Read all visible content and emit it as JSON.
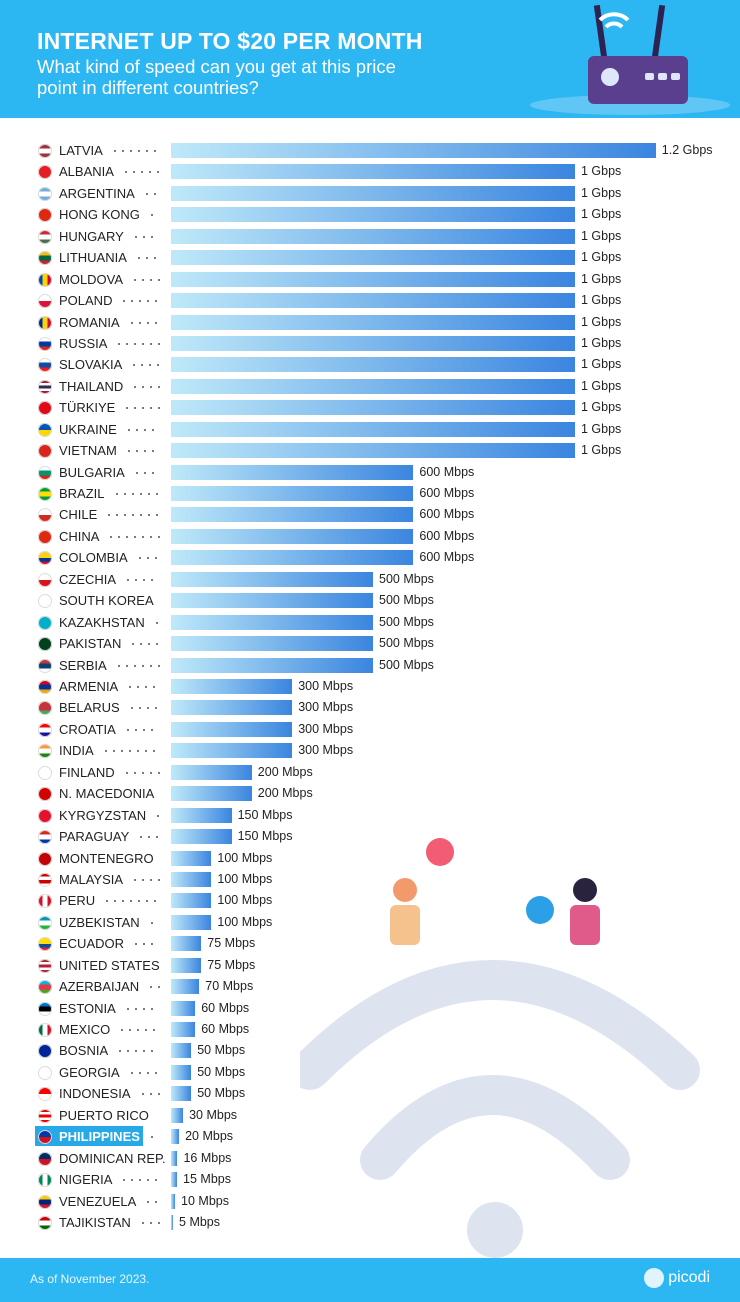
{
  "header": {
    "title": "INTERNET UP TO $20 PER MONTH",
    "subtitle": "What kind of speed can you get at this price point in different countries?"
  },
  "footer": {
    "note": "As of November 2023.",
    "brand": "picodi"
  },
  "chart_data": {
    "type": "bar",
    "orientation": "horizontal",
    "unit": "Mbps",
    "xlim": [
      0,
      1200
    ],
    "grid": false,
    "bar_gradient": [
      "#bfe9f9",
      "#3a85df"
    ],
    "highlight_color": "#28a9e7",
    "categories": [
      "LATVIA",
      "ALBANIA",
      "ARGENTINA",
      "HONG KONG",
      "HUNGARY",
      "LITHUANIA",
      "MOLDOVA",
      "POLAND",
      "ROMANIA",
      "RUSSIA",
      "SLOVAKIA",
      "THAILAND",
      "TÜRKIYE",
      "UKRAINE",
      "VIETNAM",
      "BULGARIA",
      "BRAZIL",
      "CHILE",
      "CHINA",
      "COLOMBIA",
      "CZECHIA",
      "SOUTH KOREA",
      "KAZAKHSTAN",
      "PAKISTAN",
      "SERBIA",
      "ARMENIA",
      "BELARUS",
      "CROATIA",
      "INDIA",
      "FINLAND",
      "N. MACEDONIA",
      "KYRGYZSTAN",
      "PARAGUAY",
      "MONTENEGRO",
      "MALAYSIA",
      "PERU",
      "UZBEKISTAN",
      "ECUADOR",
      "UNITED STATES",
      "AZERBAIJAN",
      "ESTONIA",
      "MEXICO",
      "BOSNIA",
      "GEORGIA",
      "INDONESIA",
      "PUERTO RICO",
      "PHILIPPINES",
      "DOMINICAN REP.",
      "NIGERIA",
      "VENEZUELA",
      "TAJIKISTAN"
    ],
    "values": [
      1200,
      1000,
      1000,
      1000,
      1000,
      1000,
      1000,
      1000,
      1000,
      1000,
      1000,
      1000,
      1000,
      1000,
      1000,
      600,
      600,
      600,
      600,
      600,
      500,
      500,
      500,
      500,
      500,
      300,
      300,
      300,
      300,
      200,
      200,
      150,
      150,
      100,
      100,
      100,
      100,
      75,
      75,
      70,
      60,
      60,
      50,
      50,
      50,
      30,
      20,
      16,
      15,
      10,
      5
    ],
    "labels": [
      "1.2 Gbps",
      "1 Gbps",
      "1 Gbps",
      "1 Gbps",
      "1 Gbps",
      "1 Gbps",
      "1 Gbps",
      "1 Gbps",
      "1 Gbps",
      "1 Gbps",
      "1 Gbps",
      "1 Gbps",
      "1 Gbps",
      "1 Gbps",
      "1 Gbps",
      "600 Mbps",
      "600 Mbps",
      "600 Mbps",
      "600 Mbps",
      "600 Mbps",
      "500 Mbps",
      "500 Mbps",
      "500 Mbps",
      "500 Mbps",
      "500 Mbps",
      "300 Mbps",
      "300 Mbps",
      "300 Mbps",
      "300 Mbps",
      "200 Mbps",
      "200 Mbps",
      "150 Mbps",
      "150 Mbps",
      "100 Mbps",
      "100 Mbps",
      "100 Mbps",
      "100 Mbps",
      "75 Mbps",
      "75 Mbps",
      "70 Mbps",
      "60 Mbps",
      "60 Mbps",
      "50 Mbps",
      "50 Mbps",
      "50 Mbps",
      "30 Mbps",
      "20 Mbps",
      "16 Mbps",
      "15 Mbps",
      "10 Mbps",
      "5 Mbps"
    ],
    "highlighted": "PHILIPPINES",
    "flags": [
      [
        "#9e3039",
        "#ffffff",
        "#9e3039"
      ],
      [
        "#e41e20"
      ],
      [
        "#74acdf",
        "#ffffff",
        "#74acdf"
      ],
      [
        "#de2910"
      ],
      [
        "#ce2939",
        "#ffffff",
        "#477050"
      ],
      [
        "#fdb913",
        "#006a44",
        "#c1272d"
      ],
      [
        "v",
        "#0046ae",
        "#ffd200",
        "#cc092f"
      ],
      [
        "#ffffff",
        "#dc143c"
      ],
      [
        "v",
        "#002b7f",
        "#fcd116",
        "#ce1126"
      ],
      [
        "#ffffff",
        "#0039a6",
        "#d52b1e"
      ],
      [
        "#ffffff",
        "#0b4ea2",
        "#ee1c25"
      ],
      [
        "#a51931",
        "#ffffff",
        "#2d2a4a",
        "#ffffff",
        "#a51931"
      ],
      [
        "#e30a17"
      ],
      [
        "#0057b7",
        "#ffd700"
      ],
      [
        "#da251d"
      ],
      [
        "#ffffff",
        "#00966e",
        "#d62612"
      ],
      [
        "#009c3b",
        "#ffdf00",
        "#009c3b"
      ],
      [
        "#ffffff",
        "#d52b1e"
      ],
      [
        "#de2910"
      ],
      [
        "#fcd116",
        "#fcd116",
        "#003893",
        "#ce1126"
      ],
      [
        "#ffffff",
        "#d7141a"
      ],
      [
        "#ffffff"
      ],
      [
        "#00afca"
      ],
      [
        "#01411c"
      ],
      [
        "#c6363c",
        "#0c4076",
        "#ffffff"
      ],
      [
        "#d90012",
        "#0033a0",
        "#f2a800"
      ],
      [
        "#c8313e",
        "#c8313e",
        "#4aa657"
      ],
      [
        "#ff0000",
        "#ffffff",
        "#171796"
      ],
      [
        "#ff9933",
        "#ffffff",
        "#138808"
      ],
      [
        "#ffffff"
      ],
      [
        "#d20000"
      ],
      [
        "#e8112d"
      ],
      [
        "#d52b1e",
        "#ffffff",
        "#0038a8"
      ],
      [
        "#c40308"
      ],
      [
        "#cc0001",
        "#ffffff",
        "#cc0001",
        "#ffffff"
      ],
      [
        "v",
        "#d91023",
        "#ffffff",
        "#d91023"
      ],
      [
        "#0099b5",
        "#ffffff",
        "#1eb53a"
      ],
      [
        "#ffdd00",
        "#ffdd00",
        "#034ea2",
        "#ed1c24"
      ],
      [
        "#b22234",
        "#ffffff",
        "#b22234",
        "#ffffff",
        "#b22234"
      ],
      [
        "#00b5e2",
        "#ef3340",
        "#509e2f"
      ],
      [
        "#0072ce",
        "#000000",
        "#ffffff"
      ],
      [
        "v",
        "#006847",
        "#ffffff",
        "#ce1126"
      ],
      [
        "#002395"
      ],
      [
        "#ffffff"
      ],
      [
        "#ff0000",
        "#ffffff"
      ],
      [
        "#ed0000",
        "#ffffff",
        "#ed0000",
        "#ffffff",
        "#ed0000"
      ],
      [
        "#0038a8",
        "#ce1126"
      ],
      [
        "#002d62",
        "#ce1126"
      ],
      [
        "v",
        "#008751",
        "#ffffff",
        "#008751"
      ],
      [
        "#ffcc00",
        "#00247d",
        "#cf142b"
      ],
      [
        "#cc0000",
        "#ffffff",
        "#006600"
      ]
    ]
  }
}
